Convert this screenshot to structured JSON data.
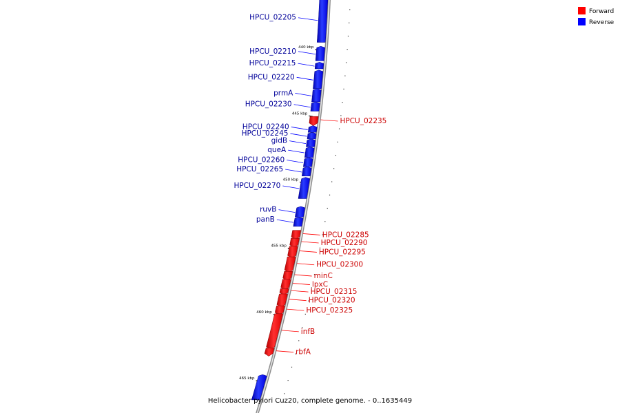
{
  "colors": {
    "forward": "#ff0000",
    "reverse": "#0000ff",
    "forward_label": "#cc0000",
    "reverse_label": "#000099",
    "backbone": "#a0a0a0"
  },
  "legend": [
    {
      "key": "forward",
      "label": "Forward"
    },
    {
      "key": "reverse",
      "label": "Reverse"
    }
  ],
  "footer": "Helicobacter pylori Cuz20, complete genome. - 0..1635449",
  "ticks": [
    {
      "label": "440 kbp",
      "pos": 440
    },
    {
      "label": "445 kbp",
      "pos": 445
    },
    {
      "label": "450 kbp",
      "pos": 450
    },
    {
      "label": "455 kbp",
      "pos": 455
    },
    {
      "label": "460 kbp",
      "pos": 460
    },
    {
      "label": "465 kbp",
      "pos": 465
    }
  ],
  "view": {
    "start_kbp": 436.2,
    "end_kbp": 466.5
  },
  "genes": [
    {
      "name": "HPCU_02205",
      "strand": "reverse",
      "start": 436.2,
      "end": 439.5
    },
    {
      "name": "HPCU_02210",
      "strand": "reverse",
      "start": 439.9,
      "end": 440.9
    },
    {
      "name": "HPCU_02215",
      "strand": "reverse",
      "start": 441.1,
      "end": 441.5
    },
    {
      "name": "HPCU_02220",
      "strand": "reverse",
      "start": 441.7,
      "end": 443.0
    },
    {
      "name": "prmA",
      "strand": "reverse",
      "start": 443.1,
      "end": 444.0
    },
    {
      "name": "HPCU_02230",
      "strand": "reverse",
      "start": 444.1,
      "end": 444.7
    },
    {
      "name": "HPCU_02235",
      "strand": "forward",
      "start": 445.1,
      "end": 445.6
    },
    {
      "name": "HPCU_02240",
      "strand": "reverse",
      "start": 445.9,
      "end": 446.3
    },
    {
      "name": "HPCU_02245",
      "strand": "reverse",
      "start": 446.4,
      "end": 446.8
    },
    {
      "name": "gidB",
      "strand": "reverse",
      "start": 446.9,
      "end": 447.4
    },
    {
      "name": "queA",
      "strand": "reverse",
      "start": 447.5,
      "end": 448.2
    },
    {
      "name": "HPCU_02260",
      "strand": "reverse",
      "start": 448.3,
      "end": 448.9
    },
    {
      "name": "HPCU_02265",
      "strand": "reverse",
      "start": 449.0,
      "end": 449.6
    },
    {
      "name": "HPCU_02270",
      "strand": "reverse",
      "start": 449.8,
      "end": 451.3
    },
    {
      "name": "ruvB",
      "strand": "reverse",
      "start": 452.0,
      "end": 452.7
    },
    {
      "name": "panB",
      "strand": "reverse",
      "start": 452.8,
      "end": 453.4
    },
    {
      "name": "HPCU_02285",
      "strand": "forward",
      "start": 453.7,
      "end": 454.2
    },
    {
      "name": "HPCU_02290",
      "strand": "forward",
      "start": 454.3,
      "end": 454.8
    },
    {
      "name": "HPCU_02295",
      "strand": "forward",
      "start": 454.9,
      "end": 455.6
    },
    {
      "name": "HPCU_02300",
      "strand": "forward",
      "start": 455.7,
      "end": 456.7
    },
    {
      "name": "minC",
      "strand": "forward",
      "start": 456.8,
      "end": 457.3
    },
    {
      "name": "lpxC",
      "strand": "forward",
      "start": 457.4,
      "end": 458.0
    },
    {
      "name": "HPCU_02315",
      "strand": "forward",
      "start": 458.1,
      "end": 458.4
    },
    {
      "name": "HPCU_02320",
      "strand": "forward",
      "start": 458.5,
      "end": 459.3
    },
    {
      "name": "HPCU_02325",
      "strand": "forward",
      "start": 459.4,
      "end": 459.9
    },
    {
      "name": "infB",
      "strand": "forward",
      "start": 460.0,
      "end": 462.5
    },
    {
      "name": "rbfA",
      "strand": "forward",
      "start": 462.6,
      "end": 463.0
    },
    {
      "name": "",
      "strand": "reverse",
      "start": 464.7,
      "end": 466.5
    }
  ]
}
